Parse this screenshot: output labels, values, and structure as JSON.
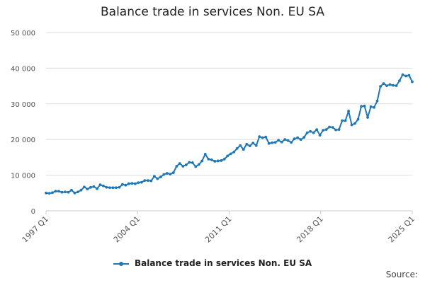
{
  "source_label": "Source:",
  "chart_data": {
    "type": "line",
    "title": "Balance trade in services Non. EU SA",
    "xlabel": "",
    "ylabel": "",
    "ylim": [
      0,
      50000
    ],
    "yticks": [
      "0",
      "10 000",
      "20 000",
      "30 000",
      "40 000",
      "50 000"
    ],
    "xticks": [
      "1997 Q1",
      "2004 Q1",
      "2011 Q1",
      "2018 Q1",
      "2025 Q1"
    ],
    "grid": true,
    "legend_position": "bottom",
    "colors": {
      "series": "#1f77b4",
      "grid": "#dddddd",
      "axis": "#cccccc"
    },
    "x_start": "1997 Q1",
    "x_end": "2025 Q1",
    "series": [
      {
        "name": "Balance trade in services Non. EU SA",
        "values": [
          5000,
          4900,
          5100,
          5500,
          5500,
          5200,
          5300,
          5200,
          5800,
          5000,
          5300,
          5800,
          6700,
          6100,
          6600,
          6800,
          6200,
          7300,
          7000,
          6600,
          6500,
          6500,
          6500,
          6600,
          7400,
          7200,
          7600,
          7700,
          7600,
          7900,
          8000,
          8500,
          8500,
          8400,
          9700,
          9000,
          9500,
          10200,
          10500,
          10300,
          10700,
          12500,
          13300,
          12500,
          12900,
          13600,
          13500,
          12400,
          13000,
          14000,
          15900,
          14500,
          14300,
          13900,
          14000,
          14100,
          14500,
          15400,
          16000,
          16500,
          17500,
          18300,
          17200,
          18700,
          18200,
          19000,
          18300,
          20800,
          20500,
          20700,
          18900,
          19100,
          19200,
          19800,
          19300,
          20000,
          19700,
          19200,
          20200,
          20500,
          20000,
          20600,
          21900,
          22300,
          21900,
          22800,
          21200,
          22600,
          22800,
          23500,
          23400,
          22700,
          22800,
          25300,
          25300,
          28000,
          24100,
          24500,
          25700,
          29300,
          29400,
          26200,
          29200,
          29000,
          30800,
          34900,
          35700,
          35100,
          35400,
          35200,
          35100,
          36500,
          38200,
          37800,
          38000,
          36200
        ]
      }
    ]
  }
}
